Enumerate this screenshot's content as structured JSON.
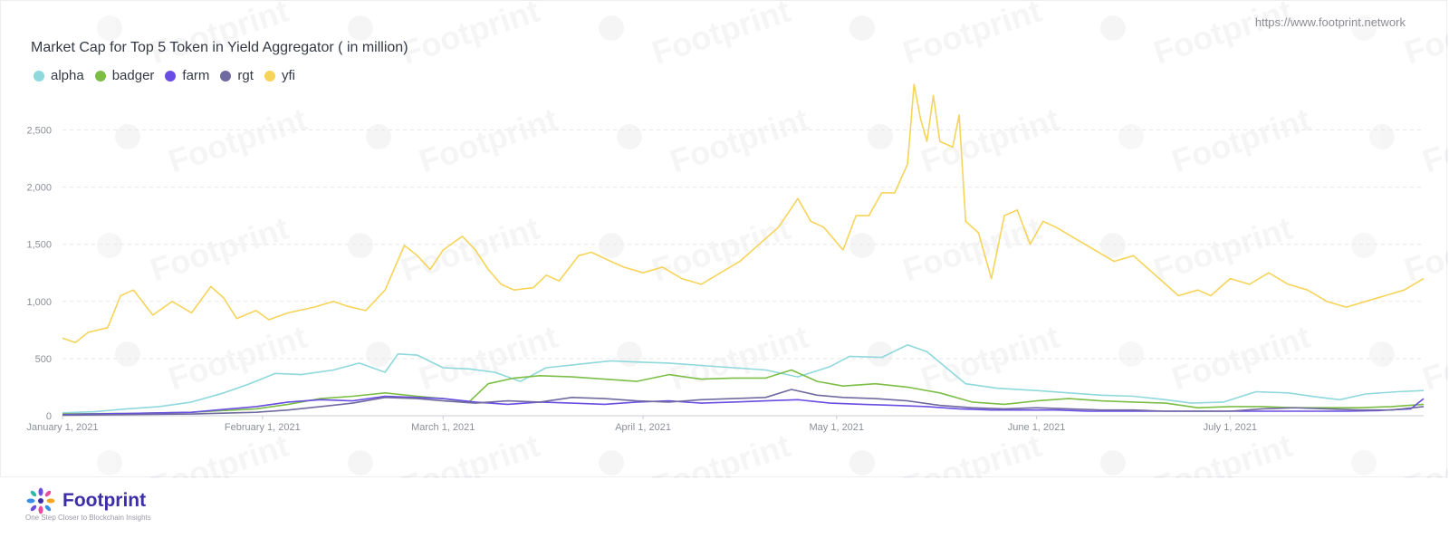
{
  "header": {
    "source_url": "https://www.footprint.network"
  },
  "footer": {
    "brand": "Footprint",
    "tagline": "One Step Closer to Blockchain Insights"
  },
  "watermark_text": "Footprint",
  "chart_data": {
    "type": "line",
    "title": "Market Cap for Top 5 Token in Yield Aggregator ( in million)",
    "xlabel": "",
    "ylabel": "",
    "x_range": [
      "2021-01-01",
      "2021-07-31"
    ],
    "ylim": [
      0,
      2900
    ],
    "y_ticks": [
      0,
      500,
      1000,
      1500,
      2000,
      2500
    ],
    "y_tick_labels": [
      "0",
      "500",
      "1,000",
      "1,500",
      "2,000",
      "2,500"
    ],
    "x_ticks": [
      "2021-01-01",
      "2021-02-01",
      "2021-03-01",
      "2021-04-01",
      "2021-05-01",
      "2021-06-01",
      "2021-07-01"
    ],
    "x_tick_labels": [
      "January 1, 2021",
      "February 1, 2021",
      "March 1, 2021",
      "April 1, 2021",
      "May 1, 2021",
      "June 1, 2021",
      "July 1, 2021"
    ],
    "grid": true,
    "legend_position": "top-left",
    "series": [
      {
        "name": "alpha",
        "color": "#8fd8dc",
        "points": [
          [
            "2021-01-01",
            25
          ],
          [
            "2021-01-06",
            35
          ],
          [
            "2021-01-11",
            60
          ],
          [
            "2021-01-16",
            80
          ],
          [
            "2021-01-21",
            120
          ],
          [
            "2021-01-26",
            200
          ],
          [
            "2021-01-30",
            280
          ],
          [
            "2021-02-03",
            370
          ],
          [
            "2021-02-07",
            360
          ],
          [
            "2021-02-12",
            400
          ],
          [
            "2021-02-16",
            460
          ],
          [
            "2021-02-20",
            380
          ],
          [
            "2021-02-22",
            540
          ],
          [
            "2021-02-25",
            530
          ],
          [
            "2021-03-01",
            420
          ],
          [
            "2021-03-05",
            410
          ],
          [
            "2021-03-09",
            380
          ],
          [
            "2021-03-13",
            300
          ],
          [
            "2021-03-17",
            420
          ],
          [
            "2021-03-22",
            450
          ],
          [
            "2021-03-27",
            480
          ],
          [
            "2021-03-31",
            470
          ],
          [
            "2021-04-05",
            460
          ],
          [
            "2021-04-10",
            440
          ],
          [
            "2021-04-15",
            420
          ],
          [
            "2021-04-20",
            400
          ],
          [
            "2021-04-25",
            340
          ],
          [
            "2021-04-30",
            430
          ],
          [
            "2021-05-03",
            520
          ],
          [
            "2021-05-08",
            510
          ],
          [
            "2021-05-12",
            620
          ],
          [
            "2021-05-15",
            560
          ],
          [
            "2021-05-18",
            420
          ],
          [
            "2021-05-21",
            280
          ],
          [
            "2021-05-26",
            240
          ],
          [
            "2021-06-01",
            220
          ],
          [
            "2021-06-06",
            200
          ],
          [
            "2021-06-11",
            180
          ],
          [
            "2021-06-16",
            170
          ],
          [
            "2021-06-21",
            140
          ],
          [
            "2021-06-25",
            110
          ],
          [
            "2021-06-30",
            120
          ],
          [
            "2021-07-05",
            210
          ],
          [
            "2021-07-10",
            200
          ],
          [
            "2021-07-15",
            160
          ],
          [
            "2021-07-18",
            140
          ],
          [
            "2021-07-22",
            190
          ],
          [
            "2021-07-27",
            210
          ],
          [
            "2021-07-31",
            220
          ]
        ]
      },
      {
        "name": "badger",
        "color": "#7cbe45",
        "points": [
          [
            "2021-01-01",
            15
          ],
          [
            "2021-01-11",
            20
          ],
          [
            "2021-01-21",
            30
          ],
          [
            "2021-01-31",
            60
          ],
          [
            "2021-02-05",
            100
          ],
          [
            "2021-02-10",
            150
          ],
          [
            "2021-02-15",
            170
          ],
          [
            "2021-02-20",
            200
          ],
          [
            "2021-02-25",
            170
          ],
          [
            "2021-03-01",
            150
          ],
          [
            "2021-03-05",
            120
          ],
          [
            "2021-03-08",
            280
          ],
          [
            "2021-03-12",
            330
          ],
          [
            "2021-03-16",
            350
          ],
          [
            "2021-03-21",
            340
          ],
          [
            "2021-03-26",
            320
          ],
          [
            "2021-03-31",
            300
          ],
          [
            "2021-04-05",
            360
          ],
          [
            "2021-04-10",
            320
          ],
          [
            "2021-04-15",
            330
          ],
          [
            "2021-04-20",
            330
          ],
          [
            "2021-04-24",
            400
          ],
          [
            "2021-04-28",
            300
          ],
          [
            "2021-05-02",
            260
          ],
          [
            "2021-05-07",
            280
          ],
          [
            "2021-05-12",
            250
          ],
          [
            "2021-05-17",
            200
          ],
          [
            "2021-05-22",
            120
          ],
          [
            "2021-05-27",
            100
          ],
          [
            "2021-06-01",
            130
          ],
          [
            "2021-06-06",
            150
          ],
          [
            "2021-06-11",
            130
          ],
          [
            "2021-06-16",
            120
          ],
          [
            "2021-06-21",
            110
          ],
          [
            "2021-06-26",
            70
          ],
          [
            "2021-07-01",
            80
          ],
          [
            "2021-07-06",
            80
          ],
          [
            "2021-07-11",
            70
          ],
          [
            "2021-07-16",
            70
          ],
          [
            "2021-07-21",
            70
          ],
          [
            "2021-07-26",
            80
          ],
          [
            "2021-07-31",
            100
          ]
        ]
      },
      {
        "name": "farm",
        "color": "#6a4de2",
        "points": [
          [
            "2021-01-01",
            10
          ],
          [
            "2021-01-11",
            20
          ],
          [
            "2021-01-21",
            30
          ],
          [
            "2021-01-31",
            80
          ],
          [
            "2021-02-05",
            120
          ],
          [
            "2021-02-10",
            140
          ],
          [
            "2021-02-15",
            130
          ],
          [
            "2021-02-20",
            170
          ],
          [
            "2021-02-25",
            160
          ],
          [
            "2021-03-01",
            150
          ],
          [
            "2021-03-06",
            120
          ],
          [
            "2021-03-11",
            100
          ],
          [
            "2021-03-16",
            120
          ],
          [
            "2021-03-21",
            110
          ],
          [
            "2021-03-26",
            100
          ],
          [
            "2021-03-31",
            120
          ],
          [
            "2021-04-05",
            130
          ],
          [
            "2021-04-10",
            110
          ],
          [
            "2021-04-15",
            120
          ],
          [
            "2021-04-20",
            130
          ],
          [
            "2021-04-25",
            140
          ],
          [
            "2021-04-30",
            110
          ],
          [
            "2021-05-05",
            100
          ],
          [
            "2021-05-10",
            90
          ],
          [
            "2021-05-15",
            80
          ],
          [
            "2021-05-20",
            60
          ],
          [
            "2021-05-25",
            50
          ],
          [
            "2021-05-30",
            50
          ],
          [
            "2021-06-04",
            50
          ],
          [
            "2021-06-09",
            40
          ],
          [
            "2021-06-14",
            40
          ],
          [
            "2021-06-19",
            40
          ],
          [
            "2021-06-24",
            40
          ],
          [
            "2021-06-29",
            40
          ],
          [
            "2021-07-04",
            40
          ],
          [
            "2021-07-09",
            40
          ],
          [
            "2021-07-14",
            40
          ],
          [
            "2021-07-19",
            40
          ],
          [
            "2021-07-24",
            45
          ],
          [
            "2021-07-29",
            60
          ],
          [
            "2021-07-31",
            150
          ]
        ]
      },
      {
        "name": "rgt",
        "color": "#6f6aa0",
        "points": [
          [
            "2021-01-01",
            5
          ],
          [
            "2021-01-11",
            10
          ],
          [
            "2021-01-21",
            15
          ],
          [
            "2021-01-31",
            30
          ],
          [
            "2021-02-05",
            50
          ],
          [
            "2021-02-10",
            80
          ],
          [
            "2021-02-15",
            110
          ],
          [
            "2021-02-20",
            160
          ],
          [
            "2021-02-25",
            150
          ],
          [
            "2021-03-01",
            130
          ],
          [
            "2021-03-06",
            110
          ],
          [
            "2021-03-11",
            130
          ],
          [
            "2021-03-16",
            120
          ],
          [
            "2021-03-21",
            160
          ],
          [
            "2021-03-26",
            150
          ],
          [
            "2021-03-31",
            130
          ],
          [
            "2021-04-05",
            120
          ],
          [
            "2021-04-10",
            140
          ],
          [
            "2021-04-15",
            150
          ],
          [
            "2021-04-20",
            160
          ],
          [
            "2021-04-24",
            230
          ],
          [
            "2021-04-28",
            180
          ],
          [
            "2021-05-02",
            160
          ],
          [
            "2021-05-07",
            150
          ],
          [
            "2021-05-12",
            130
          ],
          [
            "2021-05-17",
            90
          ],
          [
            "2021-05-22",
            70
          ],
          [
            "2021-05-27",
            60
          ],
          [
            "2021-06-01",
            70
          ],
          [
            "2021-06-06",
            60
          ],
          [
            "2021-06-11",
            50
          ],
          [
            "2021-06-16",
            50
          ],
          [
            "2021-06-21",
            40
          ],
          [
            "2021-06-26",
            40
          ],
          [
            "2021-07-01",
            40
          ],
          [
            "2021-07-06",
            60
          ],
          [
            "2021-07-11",
            70
          ],
          [
            "2021-07-16",
            60
          ],
          [
            "2021-07-21",
            50
          ],
          [
            "2021-07-26",
            50
          ],
          [
            "2021-07-31",
            80
          ]
        ]
      },
      {
        "name": "yfi",
        "color": "#f6d45a",
        "points": [
          [
            "2021-01-01",
            680
          ],
          [
            "2021-01-03",
            640
          ],
          [
            "2021-01-05",
            730
          ],
          [
            "2021-01-08",
            770
          ],
          [
            "2021-01-10",
            1050
          ],
          [
            "2021-01-12",
            1100
          ],
          [
            "2021-01-15",
            880
          ],
          [
            "2021-01-18",
            1000
          ],
          [
            "2021-01-21",
            900
          ],
          [
            "2021-01-24",
            1130
          ],
          [
            "2021-01-26",
            1030
          ],
          [
            "2021-01-28",
            850
          ],
          [
            "2021-01-31",
            920
          ],
          [
            "2021-02-02",
            840
          ],
          [
            "2021-02-05",
            900
          ],
          [
            "2021-02-09",
            950
          ],
          [
            "2021-02-12",
            1000
          ],
          [
            "2021-02-14",
            960
          ],
          [
            "2021-02-17",
            920
          ],
          [
            "2021-02-20",
            1100
          ],
          [
            "2021-02-23",
            1490
          ],
          [
            "2021-02-25",
            1400
          ],
          [
            "2021-02-27",
            1280
          ],
          [
            "2021-03-01",
            1450
          ],
          [
            "2021-03-04",
            1570
          ],
          [
            "2021-03-06",
            1450
          ],
          [
            "2021-03-08",
            1280
          ],
          [
            "2021-03-10",
            1150
          ],
          [
            "2021-03-12",
            1100
          ],
          [
            "2021-03-15",
            1120
          ],
          [
            "2021-03-17",
            1230
          ],
          [
            "2021-03-19",
            1180
          ],
          [
            "2021-03-22",
            1400
          ],
          [
            "2021-03-24",
            1430
          ],
          [
            "2021-03-27",
            1350
          ],
          [
            "2021-03-29",
            1300
          ],
          [
            "2021-04-01",
            1250
          ],
          [
            "2021-04-04",
            1300
          ],
          [
            "2021-04-07",
            1200
          ],
          [
            "2021-04-10",
            1150
          ],
          [
            "2021-04-13",
            1250
          ],
          [
            "2021-04-16",
            1350
          ],
          [
            "2021-04-19",
            1500
          ],
          [
            "2021-04-22",
            1650
          ],
          [
            "2021-04-25",
            1900
          ],
          [
            "2021-04-27",
            1700
          ],
          [
            "2021-04-29",
            1650
          ],
          [
            "2021-05-02",
            1450
          ],
          [
            "2021-05-04",
            1750
          ],
          [
            "2021-05-06",
            1750
          ],
          [
            "2021-05-08",
            1950
          ],
          [
            "2021-05-10",
            1950
          ],
          [
            "2021-05-12",
            2200
          ],
          [
            "2021-05-13",
            2900
          ],
          [
            "2021-05-14",
            2600
          ],
          [
            "2021-05-15",
            2400
          ],
          [
            "2021-05-16",
            2800
          ],
          [
            "2021-05-17",
            2400
          ],
          [
            "2021-05-19",
            2350
          ],
          [
            "2021-05-20",
            2630
          ],
          [
            "2021-05-21",
            1700
          ],
          [
            "2021-05-23",
            1600
          ],
          [
            "2021-05-25",
            1200
          ],
          [
            "2021-05-27",
            1750
          ],
          [
            "2021-05-29",
            1800
          ],
          [
            "2021-05-31",
            1500
          ],
          [
            "2021-06-02",
            1700
          ],
          [
            "2021-06-04",
            1650
          ],
          [
            "2021-06-07",
            1550
          ],
          [
            "2021-06-10",
            1450
          ],
          [
            "2021-06-13",
            1350
          ],
          [
            "2021-06-16",
            1400
          ],
          [
            "2021-06-18",
            1300
          ],
          [
            "2021-06-21",
            1150
          ],
          [
            "2021-06-23",
            1050
          ],
          [
            "2021-06-26",
            1100
          ],
          [
            "2021-06-28",
            1050
          ],
          [
            "2021-07-01",
            1200
          ],
          [
            "2021-07-04",
            1150
          ],
          [
            "2021-07-07",
            1250
          ],
          [
            "2021-07-10",
            1150
          ],
          [
            "2021-07-13",
            1100
          ],
          [
            "2021-07-16",
            1000
          ],
          [
            "2021-07-19",
            950
          ],
          [
            "2021-07-22",
            1000
          ],
          [
            "2021-07-25",
            1050
          ],
          [
            "2021-07-28",
            1100
          ],
          [
            "2021-07-31",
            1200
          ]
        ]
      }
    ]
  }
}
